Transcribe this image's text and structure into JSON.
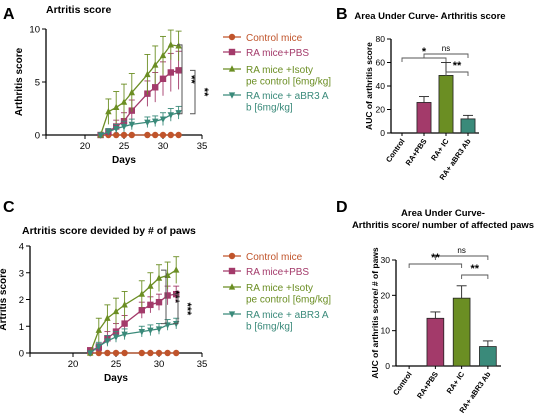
{
  "panels": {
    "a": {
      "letter": "A"
    },
    "b": {
      "letter": "B"
    },
    "c": {
      "letter": "C"
    },
    "d": {
      "letter": "D"
    }
  },
  "colors": {
    "control": "#c0542b",
    "pbs": "#a33a6a",
    "isotype": "#6b8e23",
    "abr3": "#3a8a7a",
    "axis": "#000000",
    "bracket": "#555555"
  },
  "chart_data": [
    {
      "id": "a",
      "type": "line",
      "title": "Artritis score",
      "xlabel": "Days",
      "ylabel": "Arthritis score",
      "xlim": [
        15,
        35
      ],
      "ylim": [
        0,
        10
      ],
      "xticks": [
        15,
        20,
        25,
        30,
        35
      ],
      "xticks_labeled": [
        "20",
        "25",
        "30",
        "35"
      ],
      "yticks": [
        "0",
        "5",
        "10"
      ],
      "legend_position": "right",
      "series": [
        {
          "name": "Control mice",
          "marker": "circle",
          "color": "#c0542b",
          "x": [
            22,
            23,
            24,
            25,
            26,
            28,
            29,
            30,
            31,
            32
          ],
          "y": [
            0,
            0,
            0,
            0,
            0,
            0,
            0,
            0,
            0,
            0
          ],
          "err": [
            0,
            0,
            0,
            0,
            0,
            0,
            0,
            0,
            0,
            0
          ]
        },
        {
          "name": "RA mice+PBS",
          "marker": "square",
          "color": "#a33a6a",
          "x": [
            22,
            23,
            24,
            25,
            26,
            28,
            29,
            30,
            31,
            32
          ],
          "y": [
            0,
            0.3,
            0.8,
            1.3,
            2.3,
            3.9,
            4.5,
            5.3,
            5.9,
            6.1
          ],
          "err": [
            0,
            0.3,
            0.6,
            0.8,
            1.0,
            1.2,
            1.4,
            1.6,
            1.8,
            1.8
          ]
        },
        {
          "name": "RA mice +Isotype control [6mg/kg]",
          "marker": "triangle-up",
          "color": "#6b8e23",
          "x": [
            22,
            23,
            24,
            25,
            26,
            28,
            29,
            30,
            31,
            32
          ],
          "y": [
            0,
            2.2,
            2.6,
            3.1,
            4.0,
            5.7,
            6.6,
            7.5,
            8.5,
            8.4
          ],
          "err": [
            0,
            1.2,
            1.5,
            1.7,
            1.8,
            1.9,
            1.8,
            1.8,
            1.4,
            1.4
          ]
        },
        {
          "name": "RA mice + aBR3 Ab [6mg/kg]",
          "marker": "triangle-down",
          "color": "#3a8a7a",
          "x": [
            22,
            23,
            24,
            25,
            26,
            28,
            29,
            30,
            31,
            32
          ],
          "y": [
            0,
            0.3,
            0.6,
            0.8,
            1.0,
            1.2,
            1.3,
            1.5,
            1.9,
            2.1
          ],
          "err": [
            0,
            0.3,
            0.4,
            0.5,
            0.5,
            0.5,
            0.5,
            0.6,
            0.6,
            0.6
          ]
        }
      ],
      "annotations": [
        {
          "text": "**",
          "comparison": "Isotype vs aBR3"
        },
        {
          "text": "**",
          "comparison": "PBS vs aBR3"
        }
      ]
    },
    {
      "id": "b",
      "type": "bar",
      "title": "Area Under Curve- Arthritis score",
      "xlabel": "",
      "ylabel": "AUC of arthritis score",
      "ylim": [
        0,
        80
      ],
      "yticks": [
        "0",
        "20",
        "40",
        "60",
        "80"
      ],
      "categories": [
        "Control",
        "RA+PBS",
        "RA+ IC",
        "RA+ aBR3 Ab"
      ],
      "values": [
        0,
        26,
        49,
        12
      ],
      "errors": [
        0,
        5,
        11,
        3
      ],
      "bar_colors": [
        "#c0542b",
        "#a33a6a",
        "#6b8e23",
        "#3a8a7a"
      ],
      "significance": [
        {
          "text": "ns",
          "from": 1,
          "to": 3
        },
        {
          "text": "*",
          "from": 0,
          "to": 2
        },
        {
          "text": "**",
          "from": 2,
          "to": 3
        }
      ]
    },
    {
      "id": "c",
      "type": "line",
      "title": "Artritis score devided by # of paws",
      "xlabel": "Days",
      "ylabel": "Artritis score",
      "xlim": [
        15,
        35
      ],
      "ylim": [
        0,
        4
      ],
      "xticks": [
        15,
        20,
        25,
        30,
        35
      ],
      "xticks_labeled": [
        "20",
        "25",
        "30",
        "35"
      ],
      "yticks": [
        "0",
        "1",
        "2",
        "3",
        "4"
      ],
      "legend_position": "right",
      "series": [
        {
          "name": "Control mice",
          "marker": "circle",
          "color": "#c0542b",
          "x": [
            22,
            23,
            24,
            25,
            26,
            28,
            29,
            30,
            31,
            32
          ],
          "y": [
            0,
            0,
            0,
            0,
            0,
            0,
            0,
            0,
            0,
            0
          ],
          "err": [
            0,
            0,
            0,
            0,
            0,
            0,
            0,
            0,
            0,
            0
          ]
        },
        {
          "name": "RA mice+PBS",
          "marker": "square",
          "color": "#a33a6a",
          "x": [
            22,
            23,
            24,
            25,
            26,
            28,
            29,
            30,
            31,
            32
          ],
          "y": [
            0.1,
            0.2,
            0.55,
            0.8,
            1.1,
            1.6,
            1.8,
            1.9,
            2.15,
            2.2
          ],
          "err": [
            0.1,
            0.15,
            0.25,
            0.3,
            0.3,
            0.3,
            0.3,
            0.3,
            0.35,
            0.3
          ]
        },
        {
          "name": "RA mice +Isotype control [6mg/kg]",
          "marker": "triangle-up",
          "color": "#6b8e23",
          "x": [
            22,
            23,
            24,
            25,
            26,
            28,
            29,
            30,
            31,
            32
          ],
          "y": [
            0,
            0.85,
            1.3,
            1.55,
            1.8,
            2.2,
            2.5,
            2.8,
            2.9,
            3.1
          ],
          "err": [
            0,
            0.45,
            0.5,
            0.5,
            0.5,
            0.5,
            0.5,
            0.5,
            0.5,
            0.5
          ]
        },
        {
          "name": "RA mice + aBR3 Ab [6mg/kg]",
          "marker": "triangle-down",
          "color": "#3a8a7a",
          "x": [
            22,
            23,
            24,
            25,
            26,
            28,
            29,
            30,
            31,
            32
          ],
          "y": [
            0,
            0.25,
            0.45,
            0.6,
            0.7,
            0.8,
            0.85,
            0.9,
            1.05,
            1.1
          ],
          "err": [
            0,
            0.15,
            0.2,
            0.2,
            0.2,
            0.2,
            0.2,
            0.2,
            0.2,
            0.2
          ]
        }
      ],
      "annotations": [
        {
          "text": "***",
          "comparison": "Isotype vs aBR3"
        },
        {
          "text": "***",
          "comparison": "PBS vs aBR3"
        }
      ]
    },
    {
      "id": "d",
      "type": "bar",
      "title": "Area Under Curve-",
      "subtitle": "Arthritis score/ number of affected paws",
      "xlabel": "",
      "ylabel": "AUC of arthritis score/ # of paws",
      "ylim": [
        0,
        30
      ],
      "yticks": [
        "0",
        "10",
        "20",
        "30"
      ],
      "categories": [
        "Control",
        "RA+PBS",
        "RA+ IC",
        "RA+ aBR3 Ab"
      ],
      "values": [
        0,
        13.5,
        19.2,
        5.5
      ],
      "errors": [
        0,
        1.8,
        3.5,
        1.6
      ],
      "bar_colors": [
        "#c0542b",
        "#a33a6a",
        "#6b8e23",
        "#3a8a7a"
      ],
      "significance": [
        {
          "text": "ns",
          "from": 1,
          "to": 3
        },
        {
          "text": "**",
          "from": 0,
          "to": 2
        },
        {
          "text": "**",
          "from": 2,
          "to": 3
        }
      ]
    }
  ]
}
